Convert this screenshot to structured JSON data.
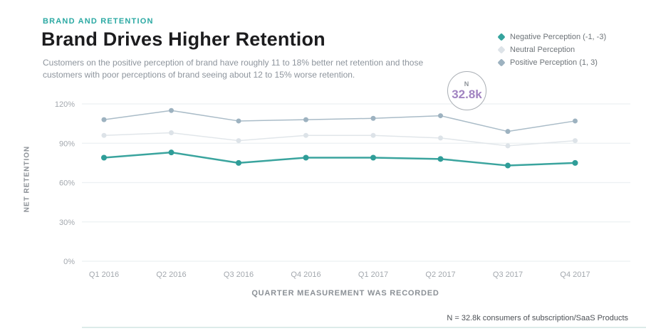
{
  "header": {
    "eyebrow": "BRAND AND RETENTION",
    "title": "Brand Drives Higher Retention",
    "subtitle": "Customers on the positive perception of brand have roughly 11 to 18% better net retention and those customers with poor perceptions of brand seeing about 12 to 15% worse retention."
  },
  "legend": {
    "items": [
      {
        "label": "Negative Perception (-1, -3)",
        "color": "#35a39d"
      },
      {
        "label": "Neutral Perception",
        "color": "#dde3e8"
      },
      {
        "label": "Positive Perception (1, 3)",
        "color": "#9db2c0"
      }
    ]
  },
  "badge": {
    "label": "N",
    "value": "32.8k"
  },
  "chart_data": {
    "type": "line",
    "title": "Brand Drives Higher Retention",
    "categories": [
      "Q1 2016",
      "Q2 2016",
      "Q3 2016",
      "Q4 2016",
      "Q1 2017",
      "Q2 2017",
      "Q3 2017",
      "Q4 2017"
    ],
    "series": [
      {
        "name": "Negative Perception (-1, -3)",
        "line_color": "#3aa49e",
        "marker_color": "#2f9d98",
        "line_width": 2.5,
        "marker_radius": 4,
        "values": [
          79,
          83,
          75,
          79,
          79,
          78,
          73,
          75
        ]
      },
      {
        "name": "Neutral Perception",
        "line_color": "#e1e6ea",
        "marker_color": "#dde3e8",
        "line_width": 1.5,
        "marker_radius": 3.5,
        "values": [
          96,
          98,
          92,
          96,
          96,
          94,
          88,
          92
        ]
      },
      {
        "name": "Positive Perception (1, 3)",
        "line_color": "#aabcc8",
        "marker_color": "#9db2c0",
        "line_width": 1.5,
        "marker_radius": 3.5,
        "values": [
          108,
          115,
          107,
          108,
          109,
          111,
          99,
          107
        ]
      }
    ],
    "xlabel": "QUARTER MEASUREMENT WAS RECORDED",
    "ylabel": "NET RETENTION",
    "yticks": [
      {
        "label": "0%",
        "value": 0
      },
      {
        "label": "30%",
        "value": 30
      },
      {
        "label": "60%",
        "value": 60
      },
      {
        "label": "90%",
        "value": 90
      },
      {
        "label": "120%",
        "value": 120
      }
    ],
    "ylim": [
      0,
      132
    ],
    "grid": true,
    "legend_position": "top-right"
  },
  "footer": {
    "note": "N = 32.8k consumers of subscription/SaaS Products"
  },
  "colors": {
    "accent_teal": "#2ba9a3",
    "badge_purple": "#a183c1",
    "grid_line": "#ecf0f2",
    "tick_label": "#a3a8ae",
    "axis_title": "#8b9096"
  }
}
